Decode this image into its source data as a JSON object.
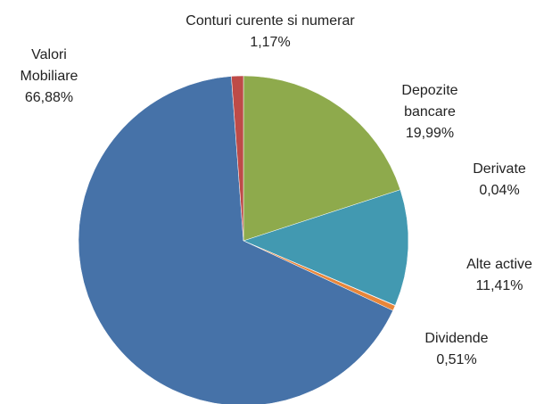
{
  "chart_data": {
    "type": "pie",
    "categories": [
      "Depozite bancare",
      "Alte active",
      "Derivate",
      "Dividende",
      "Valori Mobiliare",
      "Conturi curente si numerar"
    ],
    "values": [
      19.99,
      11.41,
      0.04,
      0.51,
      66.88,
      1.17
    ],
    "value_labels": [
      "19,99%",
      "11,41%",
      "0,04%",
      "0,51%",
      "66,88%",
      "1,17%"
    ],
    "colors": [
      "#8eaa4c",
      "#4299b1",
      "#7e62a1",
      "#e8863a",
      "#4672a8",
      "#be4b48"
    ]
  }
}
